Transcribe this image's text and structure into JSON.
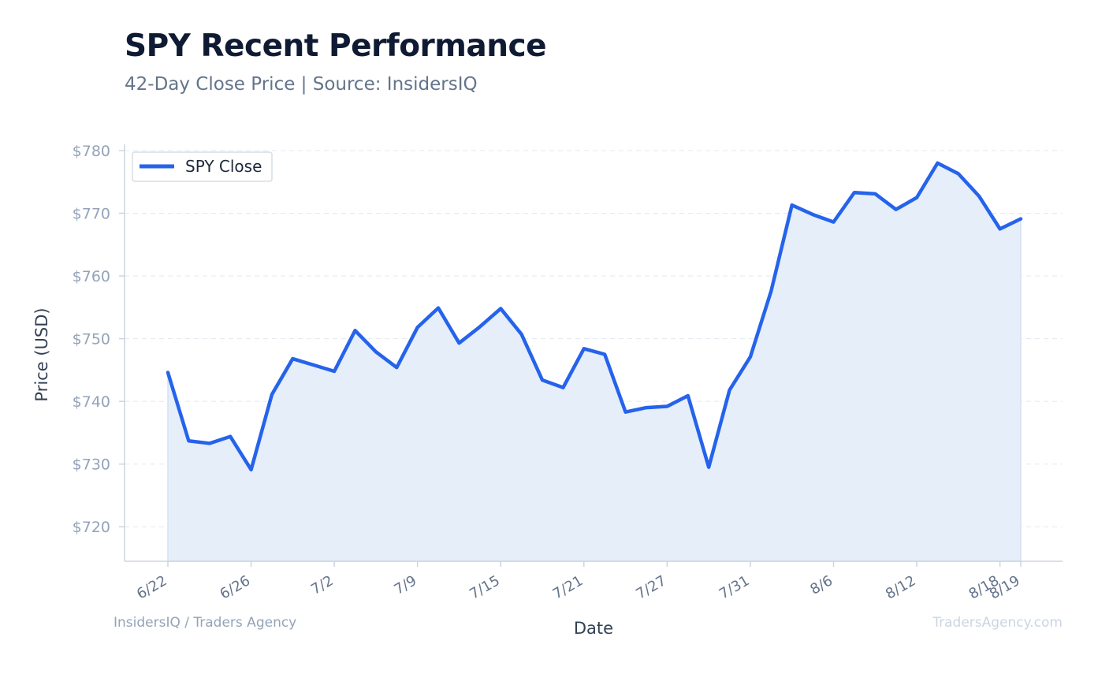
{
  "title": "SPY Recent Performance",
  "subtitle": "42-Day Close Price | Source: InsidersIQ",
  "footer": {
    "left": "InsidersIQ / Traders Agency",
    "right": "TradersAgency.com"
  },
  "colors": {
    "line": "#2563eb",
    "fill": "#e6eefa",
    "grid": "#e2e8f0",
    "axis": "#cbd5e1"
  },
  "chart_data": {
    "type": "area",
    "xlabel": "Date",
    "ylabel": "Price (USD)",
    "ylim": [
      714.5,
      781
    ],
    "y_ticks": [
      720,
      730,
      740,
      750,
      760,
      770,
      780
    ],
    "y_tick_labels": [
      "$720",
      "$730",
      "$740",
      "$750",
      "$760",
      "$770",
      "$780"
    ],
    "x_tick_labels": [
      "6/22",
      "6/26",
      "7/2",
      "7/9",
      "7/15",
      "7/21",
      "7/27",
      "7/31",
      "8/6",
      "8/12",
      "8/18",
      "8/19"
    ],
    "x_tick_indices": [
      0,
      4,
      8,
      12,
      16,
      20,
      24,
      28,
      32,
      36,
      40,
      41
    ],
    "grid": true,
    "legend_position": "top-left",
    "x": [
      "6/22",
      "6/23",
      "6/24",
      "6/25",
      "6/26",
      "6/29",
      "6/30",
      "7/1",
      "7/2",
      "7/6",
      "7/7",
      "7/8",
      "7/9",
      "7/10",
      "7/13",
      "7/14",
      "7/15",
      "7/16",
      "7/17",
      "7/20",
      "7/21",
      "7/22",
      "7/23",
      "7/24",
      "7/27",
      "7/28",
      "7/29",
      "7/30",
      "7/31",
      "8/3",
      "8/4",
      "8/5",
      "8/6",
      "8/7",
      "8/10",
      "8/11",
      "8/12",
      "8/13",
      "8/14",
      "8/17",
      "8/18",
      "8/19"
    ],
    "series": [
      {
        "name": "SPY Close",
        "values": [
          744.6,
          733.7,
          733.3,
          734.4,
          729.1,
          741.1,
          746.8,
          745.8,
          744.8,
          751.3,
          747.9,
          745.4,
          751.8,
          754.9,
          749.3,
          751.9,
          754.8,
          750.7,
          743.4,
          742.2,
          748.4,
          747.5,
          738.3,
          739.0,
          739.2,
          740.9,
          729.5,
          741.8,
          747.1,
          757.6,
          771.3,
          769.8,
          768.6,
          773.3,
          773.1,
          770.6,
          772.5,
          778.0,
          776.3,
          772.7,
          767.5,
          769.1
        ]
      }
    ]
  }
}
